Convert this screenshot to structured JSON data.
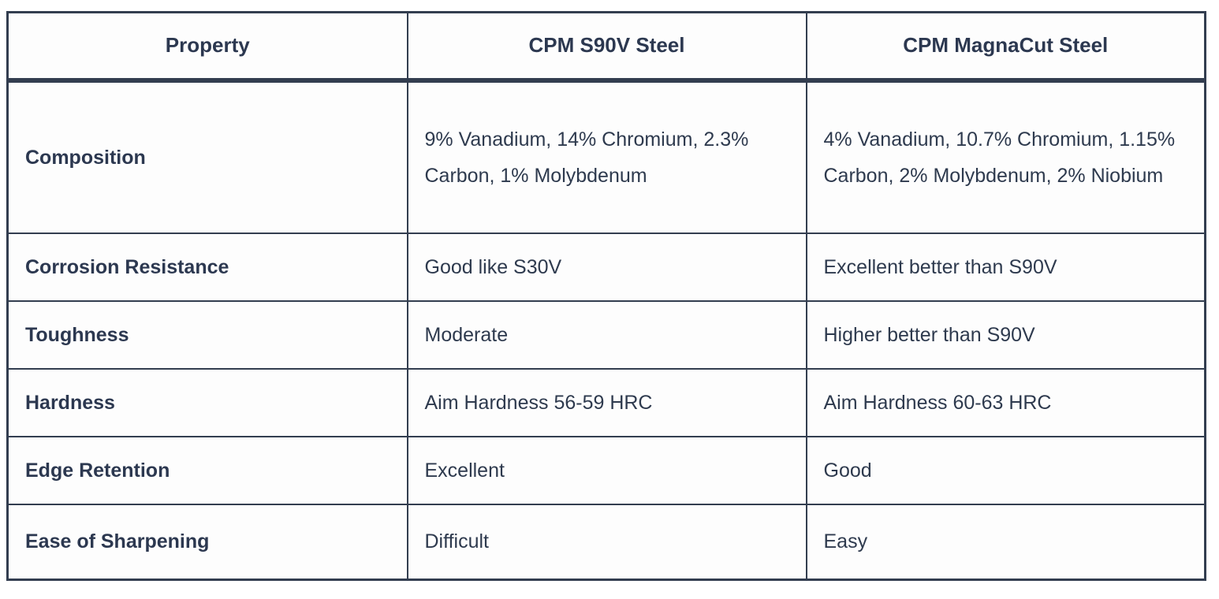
{
  "chart_data": {
    "type": "table",
    "columns": [
      "Property",
      "CPM S90V Steel",
      "CPM MagnaCut Steel"
    ],
    "rows": [
      [
        "Composition",
        "9% Vanadium, 14% Chromium, 2.3% Carbon, 1% Molybdenum",
        "4% Vanadium, 10.7% Chromium, 1.15% Carbon, 2% Molybdenum, 2% Niobium"
      ],
      [
        "Corrosion Resistance",
        "Good like S30V",
        "Excellent better than S90V"
      ],
      [
        "Toughness",
        "Moderate",
        "Higher better than S90V"
      ],
      [
        "Hardness",
        "Aim Hardness 56-59 HRC",
        "Aim Hardness 60-63 HRC"
      ],
      [
        "Edge Retention",
        "Excellent",
        "Good"
      ],
      [
        "Ease of Sharpening",
        "Difficult",
        "Easy"
      ]
    ],
    "title": "",
    "legend_position": "none",
    "grid": true
  },
  "colors": {
    "border": "#333e50",
    "text": "#2e3a4e",
    "header_text": "#2c3850",
    "background": "#fdfdfd"
  }
}
